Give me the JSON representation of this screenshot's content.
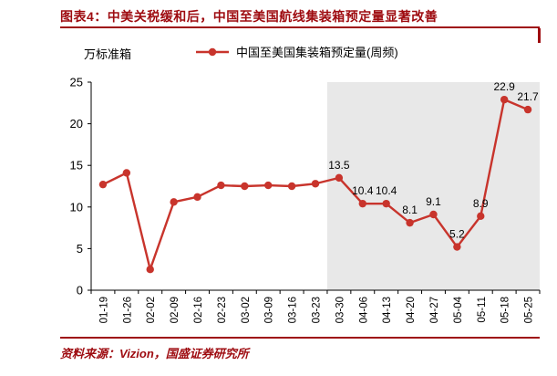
{
  "title": "图表4：中美关税缓和后，中国至美国航线集装箱预定量显著改善",
  "source": "资料来源：Vizion，国盛证券研究所",
  "accent_color": "#9e0b10",
  "chart_data": {
    "type": "line",
    "categories": [
      "01-19",
      "01-26",
      "02-02",
      "02-09",
      "02-16",
      "02-23",
      "03-02",
      "03-09",
      "03-16",
      "03-23",
      "03-30",
      "04-06",
      "04-13",
      "04-20",
      "04-27",
      "05-04",
      "05-11",
      "05-18",
      "05-25"
    ],
    "series": [
      {
        "name": "中国至美国集装箱预定量(周频)",
        "color": "#c8342c",
        "values": [
          12.7,
          14.1,
          2.5,
          10.6,
          11.2,
          12.6,
          12.5,
          12.6,
          12.5,
          12.8,
          13.5,
          10.4,
          10.4,
          8.1,
          9.1,
          5.2,
          8.9,
          22.9,
          21.7
        ],
        "point_labels": [
          "",
          "",
          "",
          "",
          "",
          "",
          "",
          "",
          "",
          "",
          "13.5",
          "10.4",
          "10.4",
          "8.1",
          "9.1",
          "5.2",
          "8.9",
          "22.9",
          "21.7"
        ]
      }
    ],
    "ylabel": "万标准箱",
    "ylim": [
      0,
      25
    ],
    "yticks": [
      0,
      5,
      10,
      15,
      20,
      25
    ],
    "grid": false,
    "legend_position": "top",
    "axis_color": "#000000",
    "label_color": "#000000",
    "shaded_region": {
      "from_category": "03-30",
      "to": "end",
      "color": "#e8e8e8"
    }
  }
}
